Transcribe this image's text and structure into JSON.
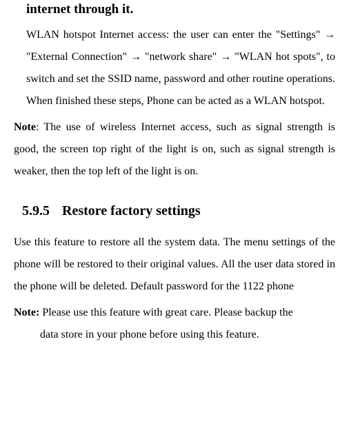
{
  "heading_partial": "internet through it.",
  "wlan_text": "WLAN hotspot Internet access: the user can enter the \"Settings\" → \"External Connection\" → \"network share\" → \"WLAN hot spots\", to switch and set the SSID name, password and other routine operations. When finished these steps, Phone can be acted as a WLAN hotspot.",
  "note1_label": "Note",
  "note1_text": ": The use of wireless Internet access, such as signal strength is good, the screen top right of the light is on, such as signal strength is weaker, then the top left of the light is on.",
  "section_number": "5.9.5",
  "section_title": "Restore factory settings",
  "restore_text": "Use this feature to restore all the system data. The menu settings of the phone will be restored to their original values. All the user data stored in the phone will be deleted. Default password for the 1122 phone",
  "note2_label": "Note:",
  "note2_text": " Please use this feature with great care. Please backup the",
  "note2_continue": "data store in your phone before using this feature.",
  "colors": {
    "background": "#ffffff",
    "text": "#000000"
  },
  "typography": {
    "body_fontsize": 16,
    "heading_fontsize": 19,
    "section_fontsize": 20,
    "font_family": "Times New Roman",
    "line_height": 2
  }
}
